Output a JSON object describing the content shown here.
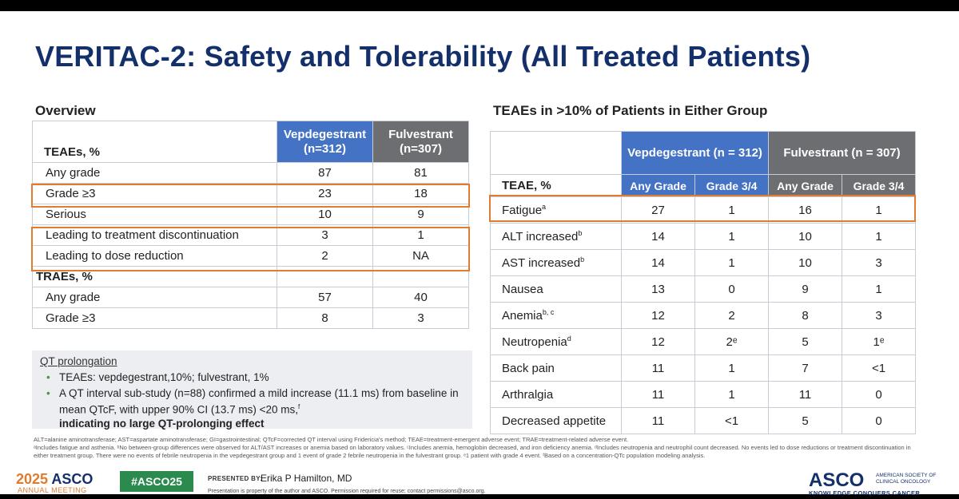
{
  "title": "VERITAC-2: Safety and Tolerability (All Treated Patients)",
  "overview": {
    "section_title": "Overview",
    "col_vep": "Vepdegestrant (n=312)",
    "col_ful": "Fulvestrant (n=307)",
    "teae_header": "TEAEs, %",
    "teae_rows": [
      {
        "label": "Any grade",
        "vep": "87",
        "ful": "81"
      },
      {
        "label": "Grade ≥3",
        "vep": "23",
        "ful": "18"
      },
      {
        "label": "Serious",
        "vep": "10",
        "ful": "9"
      },
      {
        "label": "Leading to treatment discontinuation",
        "vep": "3",
        "ful": "1"
      },
      {
        "label": "Leading to dose reduction",
        "vep": "2",
        "ful": "NA"
      }
    ],
    "trae_header": "TRAEs, %",
    "trae_rows": [
      {
        "label": "Any grade",
        "vep": "57",
        "ful": "40"
      },
      {
        "label": "Grade ≥3",
        "vep": "8",
        "ful": "3"
      }
    ]
  },
  "qt": {
    "title": "QT prolongation",
    "bullet1": "TEAEs: vepdegestrant,10%; fulvestrant, 1%",
    "bullet2": "A QT interval sub-study (n=88) confirmed a mild increase (11.1 ms) from baseline in mean QTcF, with upper 90% CI (13.7 ms) <20 ms,",
    "bullet2_sup": "f",
    "bullet2_bold": "indicating no large QT-prolonging effect"
  },
  "teae_table": {
    "section_title": "TEAEs in >10% of Patients in Either Group",
    "vep_header": "Vepdegestrant (n = 312)",
    "ful_header": "Fulvestrant (n = 307)",
    "label_header": "TEAE, %",
    "any_grade": "Any Grade",
    "grade34": "Grade 3/4",
    "rows": [
      {
        "label": "Fatigue",
        "sup": "a",
        "vep_any": "27",
        "vep_g34": "1",
        "ful_any": "16",
        "ful_g34": "1"
      },
      {
        "label": "ALT increased",
        "sup": "b",
        "vep_any": "14",
        "vep_g34": "1",
        "ful_any": "10",
        "ful_g34": "1"
      },
      {
        "label": "AST increased",
        "sup": "b",
        "vep_any": "14",
        "vep_g34": "1",
        "ful_any": "10",
        "ful_g34": "3"
      },
      {
        "label": "Nausea",
        "sup": "",
        "vep_any": "13",
        "vep_g34": "0",
        "ful_any": "9",
        "ful_g34": "1"
      },
      {
        "label": "Anemia",
        "sup": "b, c",
        "vep_any": "12",
        "vep_g34": "2",
        "ful_any": "8",
        "ful_g34": "3"
      },
      {
        "label": "Neutropenia",
        "sup": "d",
        "vep_any": "12",
        "vep_g34": "2ᵉ",
        "ful_any": "5",
        "ful_g34": "1ᵉ"
      },
      {
        "label": "Back pain",
        "sup": "",
        "vep_any": "11",
        "vep_g34": "1",
        "ful_any": "7",
        "ful_g34": "<1"
      },
      {
        "label": "Arthralgia",
        "sup": "",
        "vep_any": "11",
        "vep_g34": "1",
        "ful_any": "11",
        "ful_g34": "0"
      },
      {
        "label": "Decreased appetite",
        "sup": "",
        "vep_any": "11",
        "vep_g34": "<1",
        "ful_any": "5",
        "ful_g34": "0"
      }
    ]
  },
  "footnotes": {
    "line1": "ALT=alanine aminotransferase; AST=aspartate aminotransferase; GI=gastrointestinal; QTcF=corrected QT interval using Fridericia's method; TEAE=treatment-emergent adverse event; TRAE=treatment-related adverse event.",
    "line2": "ᵃIncludes fatigue and asthenia. ᵇNo between-group differences were observed for ALT/AST increases or anemia based on laboratory values. ᶜIncludes anemia, hemoglobin decreased, and iron deficiency anemia. ᵈIncludes neutropenia and neutrophil count decreased. No events led to dose reductions or treatment discontinuation in either treatment group. There were no events of febrile neutropenia in the vepdegestrant group and 1 event of grade 2 febrile neutropenia in the fulvestrant group. ᵉ1 patient with grade 4 event. ᶠBased on a concentration-QTc population modeling analysis."
  },
  "footer": {
    "year": "2025",
    "asco": "ASCO",
    "meeting": "ANNUAL MEETING",
    "hashtag": "#ASCO25",
    "presented_by": "PRESENTED BY:",
    "presenter": "Erika P Hamilton, MD",
    "property": "Presentation is property of the author and ASCO. Permission required for reuse; contact permissions@asco.org.",
    "logo": "ASCO",
    "logo_side": "AMERICAN SOCIETY OF CLINICAL ONCOLOGY",
    "tagline": "KNOWLEDGE CONQUERS CANCER"
  },
  "colors": {
    "navy": "#14306b",
    "vep_blue": "#4472c4",
    "ful_gray": "#6d6e71",
    "highlight": "#e07b2f",
    "green": "#2d8a4e"
  }
}
